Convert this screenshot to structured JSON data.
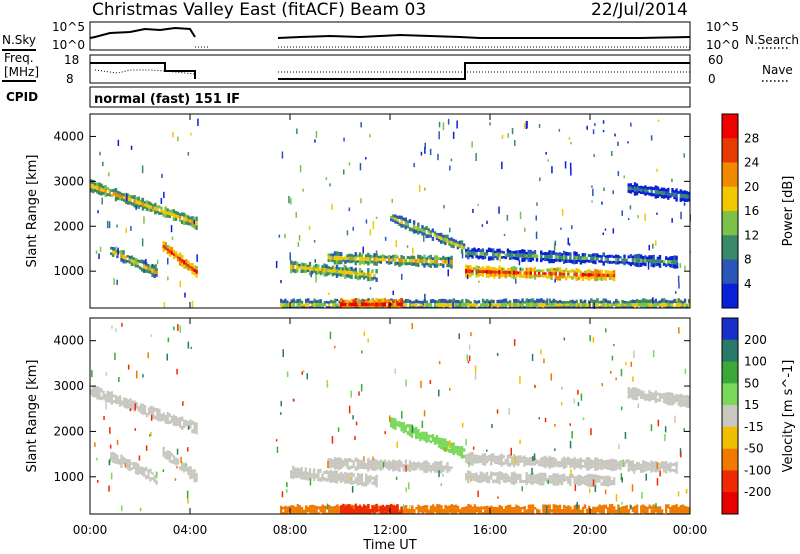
{
  "header": {
    "site": "Christmas Valley East (fitACF)",
    "beam": "Beam 03",
    "date": "22/Jul/2014",
    "mode": "normal (fast) 151 IF"
  },
  "panels": {
    "nsky": {
      "label": "N.Sky",
      "ticks": [
        "10^5",
        "10^0"
      ]
    },
    "nsearch": {
      "label": "N.Search",
      "ticks": [
        "10^5",
        "10^0"
      ]
    },
    "freq": {
      "label_line1": "Freq.",
      "label_line2": "[MHz]",
      "ticks": [
        "18",
        "8"
      ]
    },
    "nave": {
      "label": "Nave",
      "ticks": [
        "60",
        "0"
      ]
    },
    "cpid": {
      "label": "CPID"
    }
  },
  "chart_data": [
    {
      "type": "heatmap",
      "title": "Power",
      "ylabel": "Slant Range [km]",
      "ylim": [
        180,
        4500
      ],
      "yticks": [
        "1000",
        "2000",
        "3000",
        "4000"
      ],
      "xlabel": "",
      "xticks": [
        "00:00",
        "04:00",
        "08:00",
        "12:00",
        "16:00",
        "20:00",
        "00:00"
      ],
      "xlim_hours": [
        0,
        24
      ],
      "data_gap_hours": [
        4.3,
        7.4
      ],
      "colorbar": {
        "label": "Power [dB]",
        "ticks": [
          "4",
          "8",
          "12",
          "16",
          "20",
          "24",
          "28"
        ],
        "colors": [
          "#0a1fd8",
          "#2a56b8",
          "#3a8a6a",
          "#7cc24a",
          "#f2c800",
          "#f28a00",
          "#e83a00",
          "#f20000"
        ]
      },
      "echo_bands": [
        {
          "t0": 0.0,
          "t1": 4.3,
          "r0": 2900,
          "r1": 2050,
          "strength": 17
        },
        {
          "t0": 0.8,
          "t1": 2.7,
          "r0": 1450,
          "r1": 950,
          "strength": 16
        },
        {
          "t0": 2.9,
          "t1": 4.3,
          "r0": 1550,
          "r1": 950,
          "strength": 24
        },
        {
          "t0": 8.0,
          "t1": 11.5,
          "r0": 1100,
          "r1": 900,
          "strength": 16
        },
        {
          "t0": 9.5,
          "t1": 14.5,
          "r0": 1300,
          "r1": 1200,
          "strength": 16
        },
        {
          "t0": 12.0,
          "t1": 15.0,
          "r0": 2200,
          "r1": 1500,
          "strength": 13
        },
        {
          "t0": 15.0,
          "t1": 23.5,
          "r0": 1400,
          "r1": 1200,
          "strength": 9
        },
        {
          "t0": 15.0,
          "t1": 21.0,
          "r0": 1000,
          "r1": 900,
          "strength": 24
        },
        {
          "t0": 21.5,
          "t1": 24.0,
          "r0": 2850,
          "r1": 2650,
          "strength": 7
        },
        {
          "t0": 7.6,
          "t1": 24.0,
          "r0": 250,
          "r1": 250,
          "strength": 14
        },
        {
          "t0": 10.0,
          "t1": 12.5,
          "r0": 260,
          "r1": 260,
          "strength": 28
        }
      ]
    },
    {
      "type": "heatmap",
      "title": "Velocity",
      "ylabel": "Slant Range [km]",
      "ylim": [
        180,
        4500
      ],
      "yticks": [
        "1000",
        "2000",
        "3000",
        "4000"
      ],
      "xlabel": "Time UT",
      "xticks": [
        "00:00",
        "04:00",
        "08:00",
        "12:00",
        "16:00",
        "20:00",
        "00:00"
      ],
      "xlim_hours": [
        0,
        24
      ],
      "data_gap_hours": [
        4.3,
        7.4
      ],
      "colorbar": {
        "label": "Velocity [m s^-1]",
        "ticks": [
          "200",
          "100",
          "50",
          "15",
          "-15",
          "-50",
          "-100",
          "-200"
        ],
        "colors": [
          "#1a2fc8",
          "#2a7a6a",
          "#3aa83a",
          "#7ad85a",
          "#c8c8c0",
          "#f0c000",
          "#f07a00",
          "#f02a00",
          "#e80000"
        ]
      },
      "echo_bands": [
        {
          "t0": 0.0,
          "t1": 4.3,
          "r0": 2900,
          "r1": 2050,
          "strength": 0
        },
        {
          "t0": 0.8,
          "t1": 2.7,
          "r0": 1450,
          "r1": 950,
          "strength": 0
        },
        {
          "t0": 2.9,
          "t1": 4.3,
          "r0": 1550,
          "r1": 950,
          "strength": 0
        },
        {
          "t0": 8.0,
          "t1": 11.5,
          "r0": 1100,
          "r1": 900,
          "strength": 0
        },
        {
          "t0": 9.5,
          "t1": 14.5,
          "r0": 1300,
          "r1": 1200,
          "strength": 0
        },
        {
          "t0": 12.0,
          "t1": 15.0,
          "r0": 2200,
          "r1": 1500,
          "strength": 30
        },
        {
          "t0": 15.0,
          "t1": 23.5,
          "r0": 1400,
          "r1": 1200,
          "strength": 0
        },
        {
          "t0": 15.0,
          "t1": 21.0,
          "r0": 1000,
          "r1": 900,
          "strength": 0
        },
        {
          "t0": 21.5,
          "t1": 24.0,
          "r0": 2850,
          "r1": 2650,
          "strength": 0
        },
        {
          "t0": 7.6,
          "t1": 24.0,
          "r0": 250,
          "r1": 250,
          "strength": -80
        },
        {
          "t0": 10.0,
          "t1": 12.5,
          "r0": 260,
          "r1": 260,
          "strength": -150
        }
      ]
    }
  ]
}
